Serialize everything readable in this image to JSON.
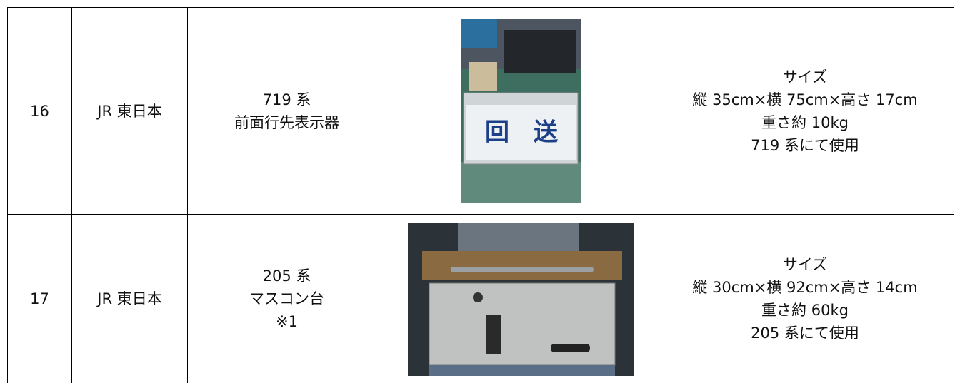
{
  "table": {
    "rows": [
      {
        "no": "16",
        "company": "JR 東日本",
        "name": [
          "719 系",
          "前面行先表示器"
        ],
        "photo_text": "回　送",
        "details": [
          "サイズ",
          "縦 35cm×横 75cm×高さ 17cm",
          "重さ約 10kg",
          "719 系にて使用"
        ]
      },
      {
        "no": "17",
        "company": "JR 東日本",
        "name": [
          "205 系",
          "マスコン台",
          "※1"
        ],
        "details": [
          "サイズ",
          "縦 30cm×横 92cm×高さ 14cm",
          "重さ約 60kg",
          "205 系にて使用"
        ]
      }
    ]
  }
}
